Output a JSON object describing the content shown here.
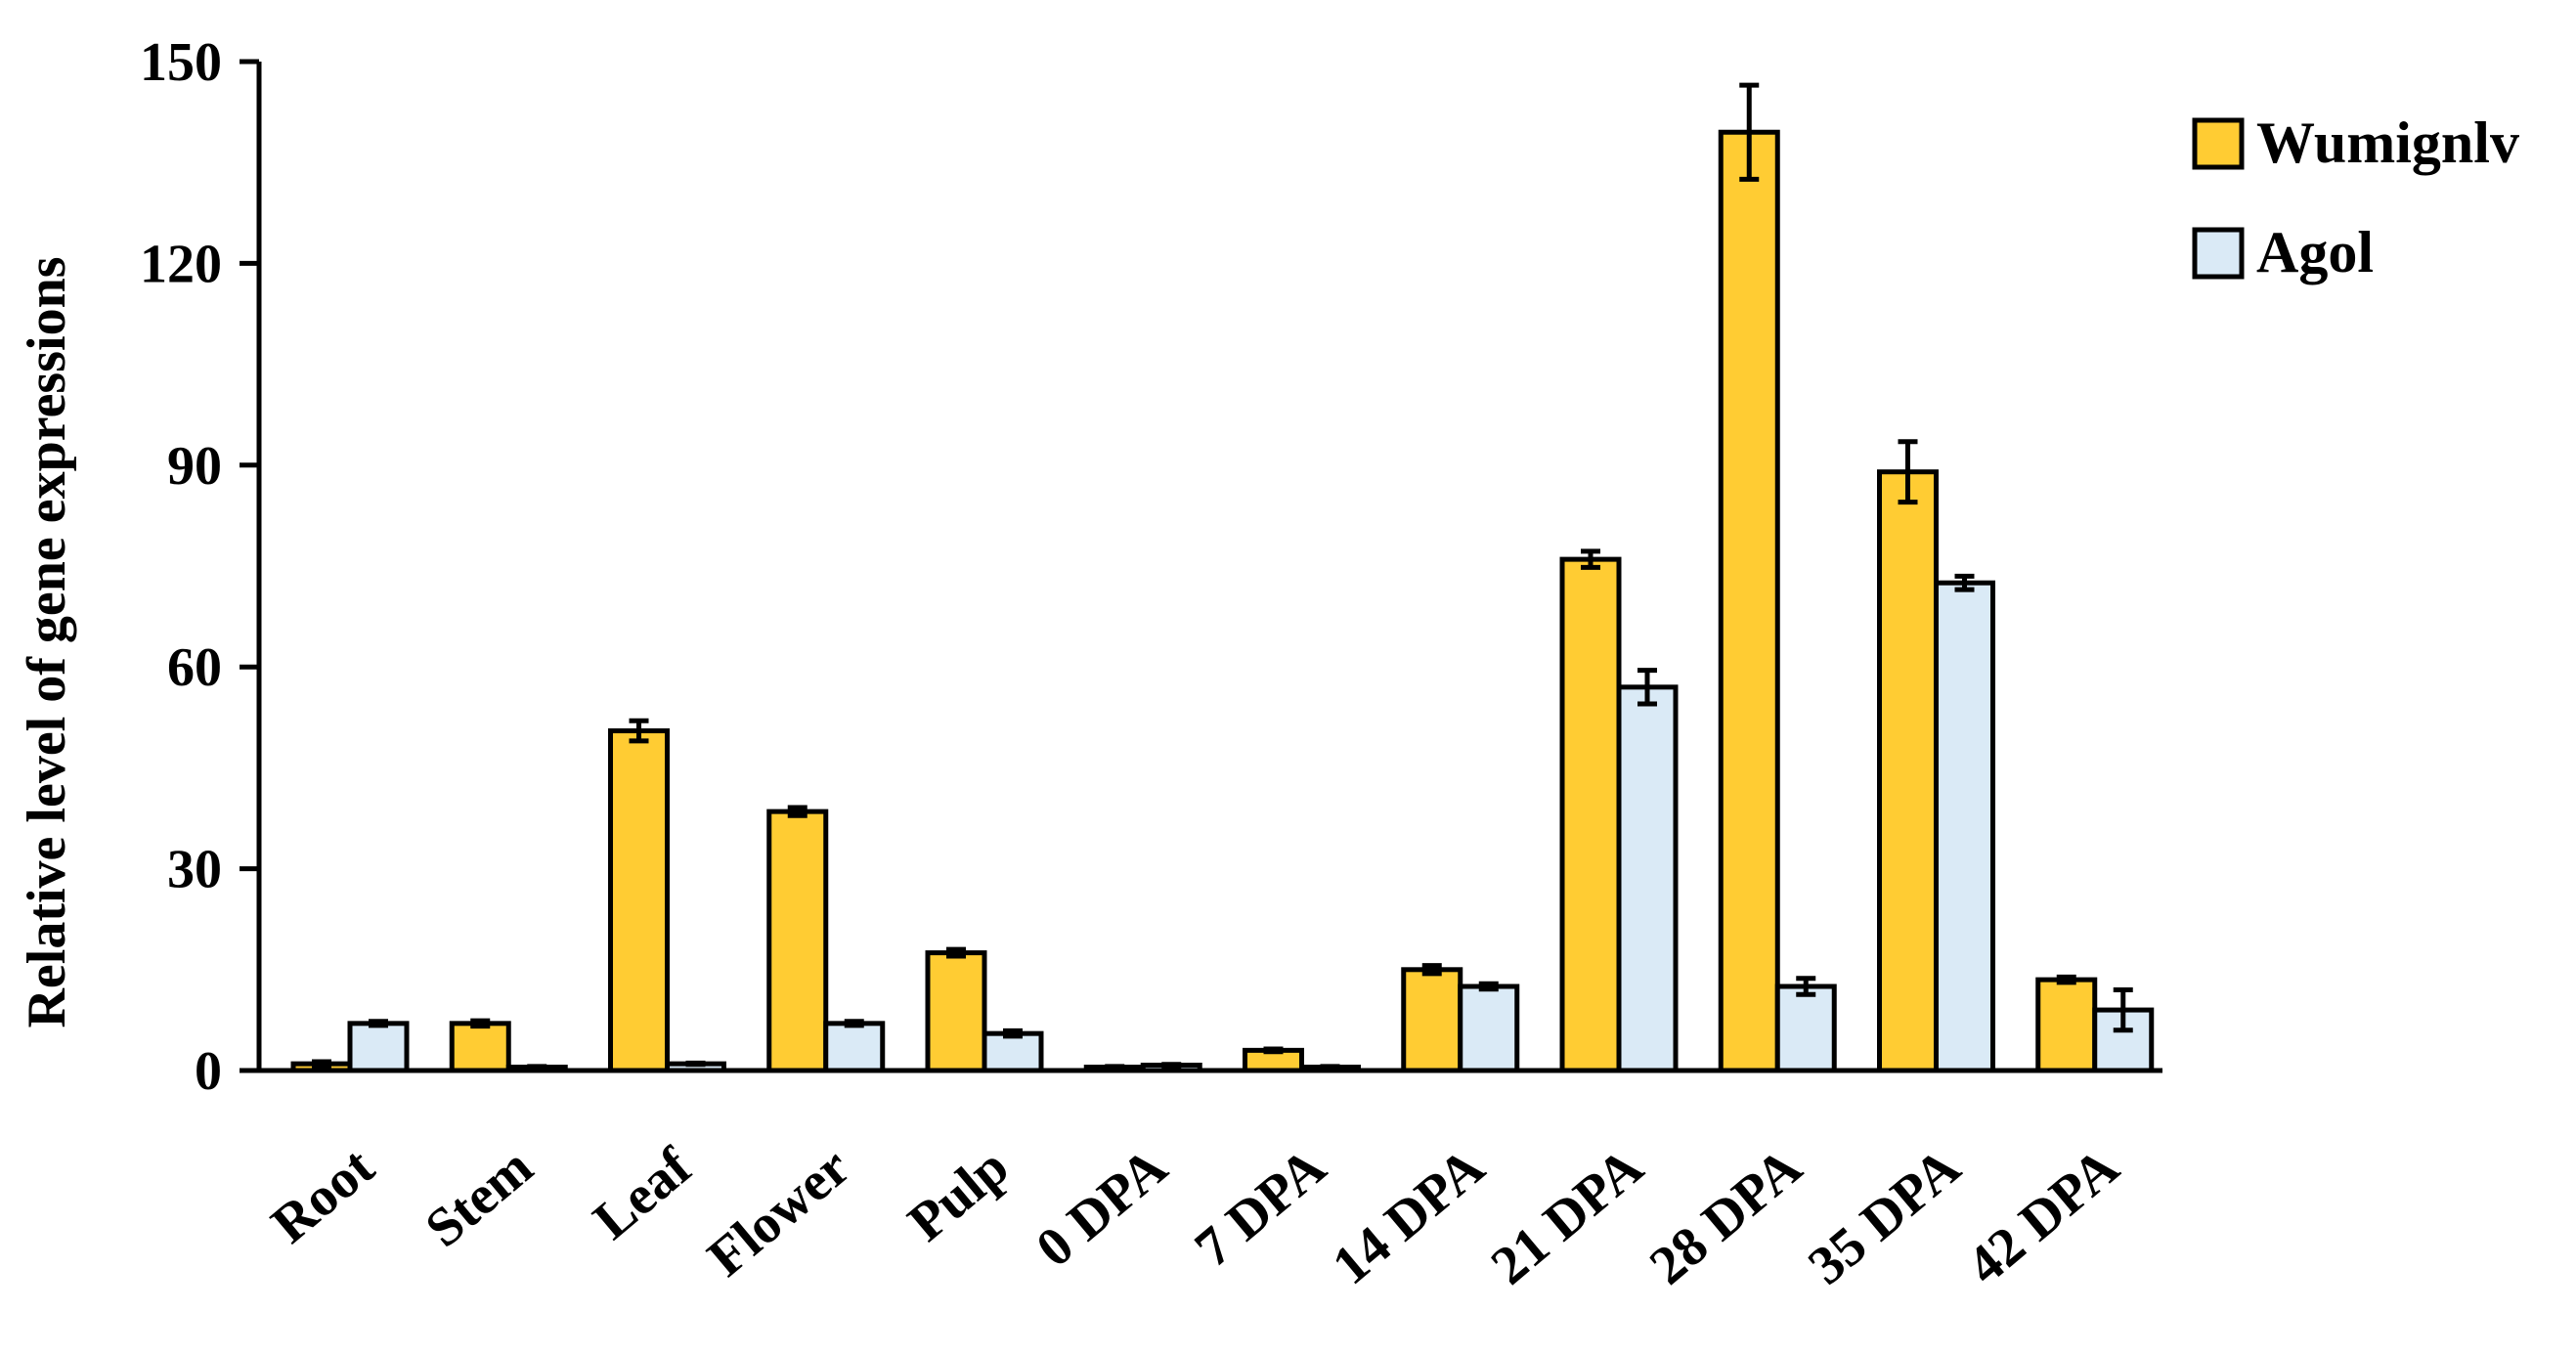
{
  "chart_data": {
    "type": "bar",
    "title": "",
    "xlabel": "",
    "ylabel": "Relative  level of gene expressions",
    "ylim": [
      0,
      150
    ],
    "yticks": [
      0,
      30,
      60,
      90,
      120,
      150
    ],
    "ytick_labels": [
      "0",
      "30",
      "60",
      "90",
      "120",
      "150"
    ],
    "grid": false,
    "legend_position": "top-right",
    "categories": [
      "Root",
      "Stem",
      "Leaf",
      "Flower",
      "Pulp",
      "0 DPA",
      "7 DPA",
      "14 DPA",
      "21 DPA",
      "28 DPA",
      "35 DPA",
      "42 DPA"
    ],
    "series": [
      {
        "name": "Wumignlv",
        "color": "#FFCC33",
        "values": [
          1,
          7,
          50.5,
          38.5,
          17.5,
          0.5,
          3,
          15,
          76,
          139.5,
          89,
          13.5
        ],
        "errors": [
          0.3,
          0.4,
          1.5,
          0.6,
          0.5,
          0.1,
          0.2,
          0.6,
          1.2,
          7,
          4.5,
          0.4
        ]
      },
      {
        "name": "Agol",
        "color": "#DAEAF6",
        "values": [
          7,
          0.5,
          1,
          7,
          5.5,
          0.8,
          0.5,
          12.5,
          57,
          12.5,
          72.5,
          9
        ],
        "errors": [
          0.3,
          0.1,
          0.1,
          0.3,
          0.4,
          0.1,
          0.1,
          0.4,
          2.5,
          1.2,
          1,
          3
        ]
      }
    ]
  }
}
